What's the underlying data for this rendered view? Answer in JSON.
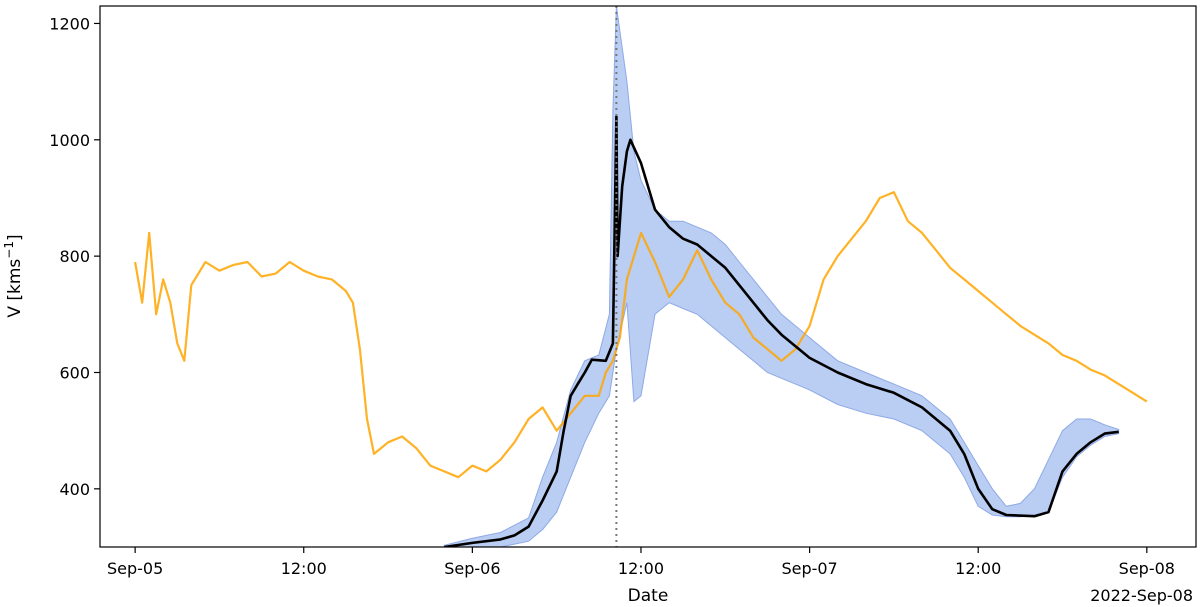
{
  "chart_data": {
    "type": "line",
    "xlabel": "Date",
    "ylabel": "V [kms⁻¹]",
    "ylabel_parts": {
      "base": "V [kms",
      "exponent": "−1",
      "close": "]"
    },
    "x_offset_label": "2022-Sep-08",
    "xlim": [
      "2022-09-04T21:30",
      "2022-09-08T03:30"
    ],
    "ylim": [
      300,
      1230
    ],
    "xticks": [
      {
        "t": "2022-09-05T00:00",
        "label": "Sep-05"
      },
      {
        "t": "2022-09-05T12:00",
        "label": "12:00"
      },
      {
        "t": "2022-09-06T00:00",
        "label": "Sep-06"
      },
      {
        "t": "2022-09-06T12:00",
        "label": "12:00"
      },
      {
        "t": "2022-09-07T00:00",
        "label": "Sep-07"
      },
      {
        "t": "2022-09-07T12:00",
        "label": "12:00"
      },
      {
        "t": "2022-09-08T00:00",
        "label": "Sep-08"
      }
    ],
    "yticks": [
      400,
      600,
      800,
      1000,
      1200
    ],
    "grid": false,
    "vline": {
      "t": "2022-09-06T10:15",
      "style": "dotted",
      "color": "#777777"
    },
    "colors": {
      "observed": "#ffa500",
      "model": "#000000",
      "band": "#aec4f0",
      "band_edge": "#8ea9e6"
    },
    "series": [
      {
        "kind": "observed",
        "points": [
          [
            "2022-09-05T00:00",
            790
          ],
          [
            "2022-09-05T00:30",
            720
          ],
          [
            "2022-09-05T01:00",
            840
          ],
          [
            "2022-09-05T01:30",
            700
          ],
          [
            "2022-09-05T02:00",
            760
          ],
          [
            "2022-09-05T02:30",
            720
          ],
          [
            "2022-09-05T03:00",
            650
          ],
          [
            "2022-09-05T03:30",
            620
          ],
          [
            "2022-09-05T04:00",
            750
          ],
          [
            "2022-09-05T05:00",
            790
          ],
          [
            "2022-09-05T06:00",
            775
          ],
          [
            "2022-09-05T07:00",
            785
          ],
          [
            "2022-09-05T08:00",
            790
          ],
          [
            "2022-09-05T09:00",
            765
          ],
          [
            "2022-09-05T10:00",
            770
          ],
          [
            "2022-09-05T11:00",
            790
          ],
          [
            "2022-09-05T12:00",
            775
          ],
          [
            "2022-09-05T13:00",
            765
          ],
          [
            "2022-09-05T14:00",
            760
          ],
          [
            "2022-09-05T15:00",
            740
          ],
          [
            "2022-09-05T15:30",
            720
          ],
          [
            "2022-09-05T16:00",
            640
          ],
          [
            "2022-09-05T16:30",
            520
          ],
          [
            "2022-09-05T17:00",
            460
          ],
          [
            "2022-09-05T18:00",
            480
          ],
          [
            "2022-09-05T19:00",
            490
          ],
          [
            "2022-09-05T20:00",
            470
          ],
          [
            "2022-09-05T21:00",
            440
          ],
          [
            "2022-09-05T22:00",
            430
          ],
          [
            "2022-09-05T23:00",
            420
          ],
          [
            "2022-09-06T00:00",
            440
          ],
          [
            "2022-09-06T01:00",
            430
          ],
          [
            "2022-09-06T02:00",
            450
          ],
          [
            "2022-09-06T03:00",
            480
          ],
          [
            "2022-09-06T04:00",
            520
          ],
          [
            "2022-09-06T05:00",
            540
          ],
          [
            "2022-09-06T06:00",
            500
          ],
          [
            "2022-09-06T07:00",
            530
          ],
          [
            "2022-09-06T08:00",
            560
          ],
          [
            "2022-09-06T09:00",
            560
          ],
          [
            "2022-09-06T09:30",
            600
          ],
          [
            "2022-09-06T10:00",
            620
          ],
          [
            "2022-09-06T10:30",
            660
          ],
          [
            "2022-09-06T11:00",
            760
          ],
          [
            "2022-09-06T12:00",
            840
          ],
          [
            "2022-09-06T13:00",
            790
          ],
          [
            "2022-09-06T14:00",
            730
          ],
          [
            "2022-09-06T15:00",
            760
          ],
          [
            "2022-09-06T16:00",
            810
          ],
          [
            "2022-09-06T17:00",
            760
          ],
          [
            "2022-09-06T18:00",
            720
          ],
          [
            "2022-09-06T19:00",
            700
          ],
          [
            "2022-09-06T20:00",
            660
          ],
          [
            "2022-09-06T21:00",
            640
          ],
          [
            "2022-09-06T22:00",
            620
          ],
          [
            "2022-09-06T23:00",
            640
          ],
          [
            "2022-09-07T00:00",
            680
          ],
          [
            "2022-09-07T01:00",
            760
          ],
          [
            "2022-09-07T02:00",
            800
          ],
          [
            "2022-09-07T03:00",
            830
          ],
          [
            "2022-09-07T04:00",
            860
          ],
          [
            "2022-09-07T05:00",
            900
          ],
          [
            "2022-09-07T06:00",
            910
          ],
          [
            "2022-09-07T07:00",
            860
          ],
          [
            "2022-09-07T08:00",
            840
          ],
          [
            "2022-09-07T09:00",
            810
          ],
          [
            "2022-09-07T10:00",
            780
          ],
          [
            "2022-09-07T11:00",
            760
          ],
          [
            "2022-09-07T12:00",
            740
          ],
          [
            "2022-09-07T13:00",
            720
          ],
          [
            "2022-09-07T14:00",
            700
          ],
          [
            "2022-09-07T15:00",
            680
          ],
          [
            "2022-09-07T16:00",
            665
          ],
          [
            "2022-09-07T17:00",
            650
          ],
          [
            "2022-09-07T18:00",
            630
          ],
          [
            "2022-09-07T19:00",
            620
          ],
          [
            "2022-09-07T20:00",
            605
          ],
          [
            "2022-09-07T21:00",
            595
          ],
          [
            "2022-09-07T22:00",
            580
          ],
          [
            "2022-09-07T23:00",
            565
          ],
          [
            "2022-09-08T00:00",
            550
          ]
        ]
      },
      {
        "kind": "model",
        "points": [
          [
            "2022-09-05T22:00",
            300
          ],
          [
            "2022-09-06T00:00",
            307
          ],
          [
            "2022-09-06T02:00",
            313
          ],
          [
            "2022-09-06T03:00",
            320
          ],
          [
            "2022-09-06T04:00",
            335
          ],
          [
            "2022-09-06T05:00",
            380
          ],
          [
            "2022-09-06T06:00",
            430
          ],
          [
            "2022-09-06T06:30",
            500
          ],
          [
            "2022-09-06T07:00",
            560
          ],
          [
            "2022-09-06T07:30",
            580
          ],
          [
            "2022-09-06T08:00",
            600
          ],
          [
            "2022-09-06T08:30",
            622
          ],
          [
            "2022-09-06T09:30",
            620
          ],
          [
            "2022-09-06T10:00",
            650
          ],
          [
            "2022-09-06T10:15",
            1040
          ],
          [
            "2022-09-06T10:20",
            800
          ],
          [
            "2022-09-06T10:40",
            920
          ],
          [
            "2022-09-06T11:00",
            980
          ],
          [
            "2022-09-06T11:15",
            1000
          ],
          [
            "2022-09-06T12:00",
            960
          ],
          [
            "2022-09-06T13:00",
            880
          ],
          [
            "2022-09-06T14:00",
            850
          ],
          [
            "2022-09-06T15:00",
            830
          ],
          [
            "2022-09-06T16:00",
            820
          ],
          [
            "2022-09-06T17:00",
            800
          ],
          [
            "2022-09-06T18:00",
            780
          ],
          [
            "2022-09-06T19:00",
            750
          ],
          [
            "2022-09-06T20:00",
            720
          ],
          [
            "2022-09-06T21:00",
            690
          ],
          [
            "2022-09-06T22:00",
            665
          ],
          [
            "2022-09-06T23:00",
            645
          ],
          [
            "2022-09-07T00:00",
            625
          ],
          [
            "2022-09-07T02:00",
            600
          ],
          [
            "2022-09-07T04:00",
            580
          ],
          [
            "2022-09-07T06:00",
            565
          ],
          [
            "2022-09-07T08:00",
            540
          ],
          [
            "2022-09-07T10:00",
            500
          ],
          [
            "2022-09-07T11:00",
            460
          ],
          [
            "2022-09-07T12:00",
            400
          ],
          [
            "2022-09-07T13:00",
            365
          ],
          [
            "2022-09-07T14:00",
            355
          ],
          [
            "2022-09-07T16:00",
            353
          ],
          [
            "2022-09-07T17:00",
            360
          ],
          [
            "2022-09-07T18:00",
            430
          ],
          [
            "2022-09-07T19:00",
            460
          ],
          [
            "2022-09-07T20:00",
            480
          ],
          [
            "2022-09-07T21:00",
            495
          ],
          [
            "2022-09-07T22:00",
            498
          ]
        ]
      }
    ],
    "band": [
      [
        "2022-09-05T22:00",
        300,
        303
      ],
      [
        "2022-09-06T00:00",
        300,
        315
      ],
      [
        "2022-09-06T02:00",
        300,
        325
      ],
      [
        "2022-09-06T04:00",
        310,
        350
      ],
      [
        "2022-09-06T05:00",
        330,
        420
      ],
      [
        "2022-09-06T06:00",
        360,
        480
      ],
      [
        "2022-09-06T07:00",
        420,
        570
      ],
      [
        "2022-09-06T08:00",
        480,
        620
      ],
      [
        "2022-09-06T09:00",
        530,
        630
      ],
      [
        "2022-09-06T09:45",
        560,
        700
      ],
      [
        "2022-09-06T10:00",
        600,
        1050
      ],
      [
        "2022-09-06T10:15",
        640,
        1230
      ],
      [
        "2022-09-06T11:00",
        720,
        1100
      ],
      [
        "2022-09-06T11:30",
        550,
        980
      ],
      [
        "2022-09-06T12:00",
        560,
        930
      ],
      [
        "2022-09-06T13:00",
        700,
        880
      ],
      [
        "2022-09-06T14:00",
        720,
        860
      ],
      [
        "2022-09-06T15:00",
        710,
        860
      ],
      [
        "2022-09-06T16:00",
        700,
        850
      ],
      [
        "2022-09-06T17:00",
        680,
        840
      ],
      [
        "2022-09-06T18:00",
        660,
        820
      ],
      [
        "2022-09-06T19:00",
        640,
        790
      ],
      [
        "2022-09-06T20:00",
        620,
        760
      ],
      [
        "2022-09-06T21:00",
        600,
        730
      ],
      [
        "2022-09-06T22:00",
        590,
        700
      ],
      [
        "2022-09-06T23:00",
        580,
        680
      ],
      [
        "2022-09-07T00:00",
        570,
        660
      ],
      [
        "2022-09-07T02:00",
        545,
        620
      ],
      [
        "2022-09-07T04:00",
        530,
        600
      ],
      [
        "2022-09-07T06:00",
        520,
        580
      ],
      [
        "2022-09-07T08:00",
        500,
        560
      ],
      [
        "2022-09-07T10:00",
        460,
        520
      ],
      [
        "2022-09-07T11:00",
        420,
        480
      ],
      [
        "2022-09-07T12:00",
        370,
        440
      ],
      [
        "2022-09-07T13:00",
        355,
        400
      ],
      [
        "2022-09-07T14:00",
        352,
        370
      ],
      [
        "2022-09-07T15:00",
        352,
        375
      ],
      [
        "2022-09-07T16:00",
        355,
        400
      ],
      [
        "2022-09-07T17:00",
        360,
        450
      ],
      [
        "2022-09-07T18:00",
        420,
        500
      ],
      [
        "2022-09-07T19:00",
        455,
        520
      ],
      [
        "2022-09-07T20:00",
        475,
        520
      ],
      [
        "2022-09-07T21:00",
        490,
        510
      ],
      [
        "2022-09-07T22:00",
        495,
        502
      ]
    ]
  }
}
